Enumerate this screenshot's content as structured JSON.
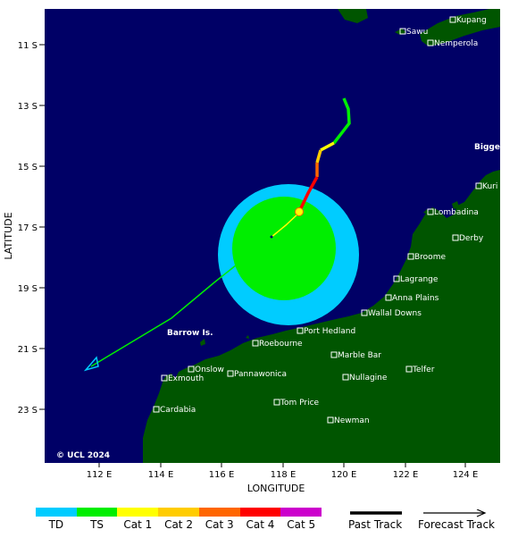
{
  "axes": {
    "x_label": "LONGITUDE",
    "y_label": "LATITUDE",
    "x_ticks": [
      "112 E",
      "114 E",
      "116 E",
      "118 E",
      "120 E",
      "122 E",
      "124 E"
    ],
    "y_ticks": [
      "11 S",
      "13 S",
      "15 S",
      "17 S",
      "19 S",
      "21 S",
      "23 S"
    ]
  },
  "copyright": "© UCL 2024",
  "regions": [
    {
      "name": "Barrow Is.",
      "color": "#00dd00"
    },
    {
      "name": "Bigge",
      "color": "#00dd00"
    }
  ],
  "places": [
    {
      "name": "Kupang"
    },
    {
      "name": "Sawu"
    },
    {
      "name": "Nemperola"
    },
    {
      "name": "Kuri Bay"
    },
    {
      "name": "Lombadina"
    },
    {
      "name": "Derby"
    },
    {
      "name": "Broome"
    },
    {
      "name": "Lagrange"
    },
    {
      "name": "Anna Plains"
    },
    {
      "name": "Wallal Downs"
    },
    {
      "name": "Port Hedland"
    },
    {
      "name": "Roebourne"
    },
    {
      "name": "Marble Bar"
    },
    {
      "name": "Telfer"
    },
    {
      "name": "Onslow"
    },
    {
      "name": "Exmouth"
    },
    {
      "name": "Pannawonica"
    },
    {
      "name": "Nullagine"
    },
    {
      "name": "Tom Price"
    },
    {
      "name": "Cardabia"
    },
    {
      "name": "Newman"
    }
  ],
  "legend": {
    "categories": [
      {
        "label": "TD",
        "color": "#00ccff"
      },
      {
        "label": "TS",
        "color": "#00ee00"
      },
      {
        "label": "Cat 1",
        "color": "#ffff00"
      },
      {
        "label": "Cat 2",
        "color": "#ffcc00"
      },
      {
        "label": "Cat 3",
        "color": "#ff6600"
      },
      {
        "label": "Cat 4",
        "color": "#ff0000"
      },
      {
        "label": "Cat 5",
        "color": "#cc00cc"
      }
    ],
    "past_track": "Past Track",
    "forecast_track": "Forecast Track"
  },
  "colors": {
    "ocean": "#000066",
    "land": "#005500",
    "wind_ts": "#00ee00",
    "wind_gale": "#00ccff"
  }
}
